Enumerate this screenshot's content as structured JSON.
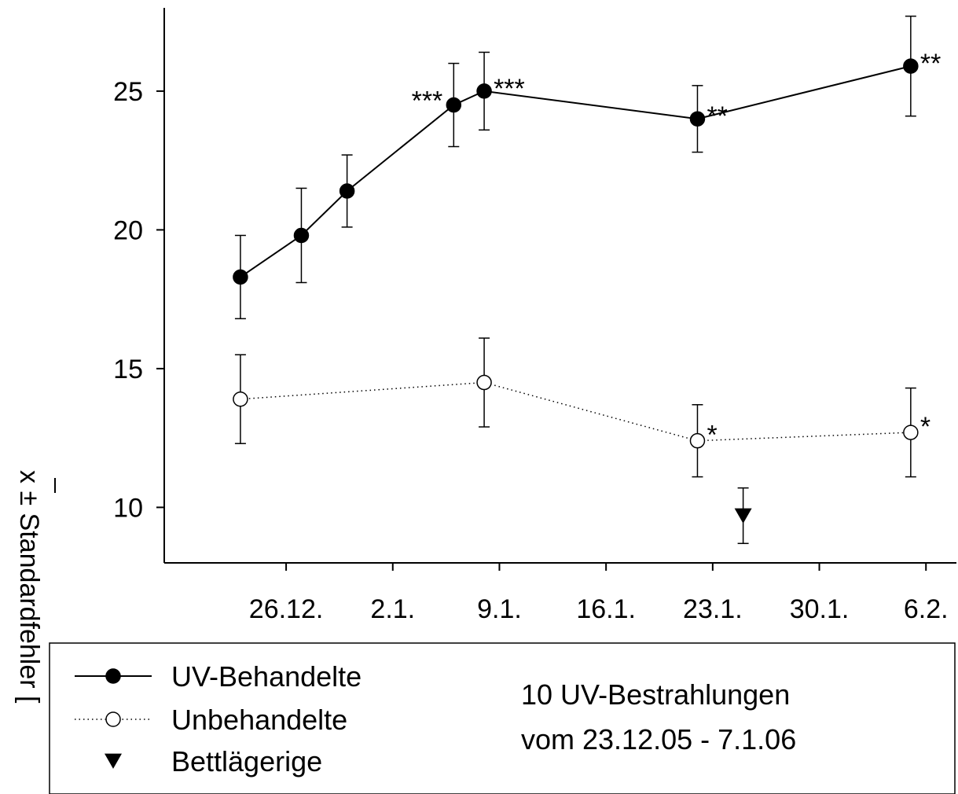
{
  "chart_data": {
    "type": "line",
    "ylabel": "x ± Standardfehler [",
    "x_ticks": [
      {
        "date": "2005-12-26",
        "label": "26.12."
      },
      {
        "date": "2006-01-02",
        "label": "2.1."
      },
      {
        "date": "2006-01-09",
        "label": "9.1."
      },
      {
        "date": "2006-01-16",
        "label": "16.1."
      },
      {
        "date": "2006-01-23",
        "label": "23.1."
      },
      {
        "date": "2006-01-30",
        "label": "30.1."
      },
      {
        "date": "2006-02-06",
        "label": "6.2."
      }
    ],
    "y_ticks": [
      10,
      15,
      20,
      25
    ],
    "ylim": [
      8,
      28
    ],
    "xlim": [
      "2005-12-18",
      "2006-02-08"
    ],
    "series": [
      {
        "name": "UV-Behandelte",
        "marker": "filled-circle",
        "line": "solid",
        "points": [
          {
            "x": "2005-12-23",
            "y": 18.3,
            "err": 1.5,
            "sig": ""
          },
          {
            "x": "2005-12-27",
            "y": 19.8,
            "err": 1.7,
            "sig": ""
          },
          {
            "x": "2005-12-30",
            "y": 21.4,
            "err": 1.3,
            "sig": ""
          },
          {
            "x": "2006-01-06",
            "y": 24.5,
            "err": 1.5,
            "sig": "***"
          },
          {
            "x": "2006-01-08",
            "y": 25.0,
            "err": 1.4,
            "sig": "***"
          },
          {
            "x": "2006-01-22",
            "y": 24.0,
            "err": 1.2,
            "sig": "**"
          },
          {
            "x": "2006-02-05",
            "y": 25.9,
            "err": 1.8,
            "sig": "**"
          }
        ]
      },
      {
        "name": "Unbehandelte",
        "marker": "open-circle",
        "line": "dotted",
        "points": [
          {
            "x": "2005-12-23",
            "y": 13.9,
            "err": 1.6,
            "sig": ""
          },
          {
            "x": "2006-01-08",
            "y": 14.5,
            "err": 1.6,
            "sig": ""
          },
          {
            "x": "2006-01-22",
            "y": 12.4,
            "err": 1.3,
            "sig": "*"
          },
          {
            "x": "2006-02-05",
            "y": 12.7,
            "err": 1.6,
            "sig": "*"
          }
        ]
      },
      {
        "name": "Bettlägerige",
        "marker": "filled-triangle-down",
        "line": "none",
        "points": [
          {
            "x": "2006-01-25",
            "y": 9.7,
            "err": 1.0,
            "sig": ""
          }
        ]
      }
    ],
    "legend": [
      "UV-Behandelte",
      "Unbehandelte",
      "Bettlägerige"
    ],
    "note": [
      "10 UV-Bestrahlungen",
      "vom 23.12.05 - 7.1.06"
    ]
  }
}
